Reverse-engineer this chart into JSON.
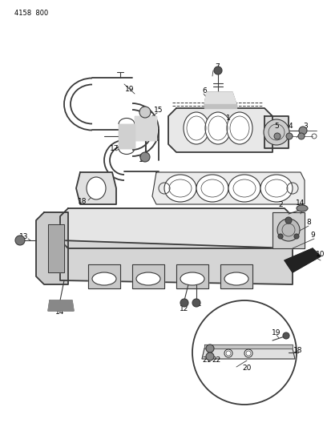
{
  "bg_color": "#f5f5f0",
  "line_color": "#3a3a3a",
  "header_text": "4158  800",
  "label_fontsize": 6.5,
  "lw_main": 1.3,
  "lw_thin": 0.8,
  "lw_thick": 2.0
}
